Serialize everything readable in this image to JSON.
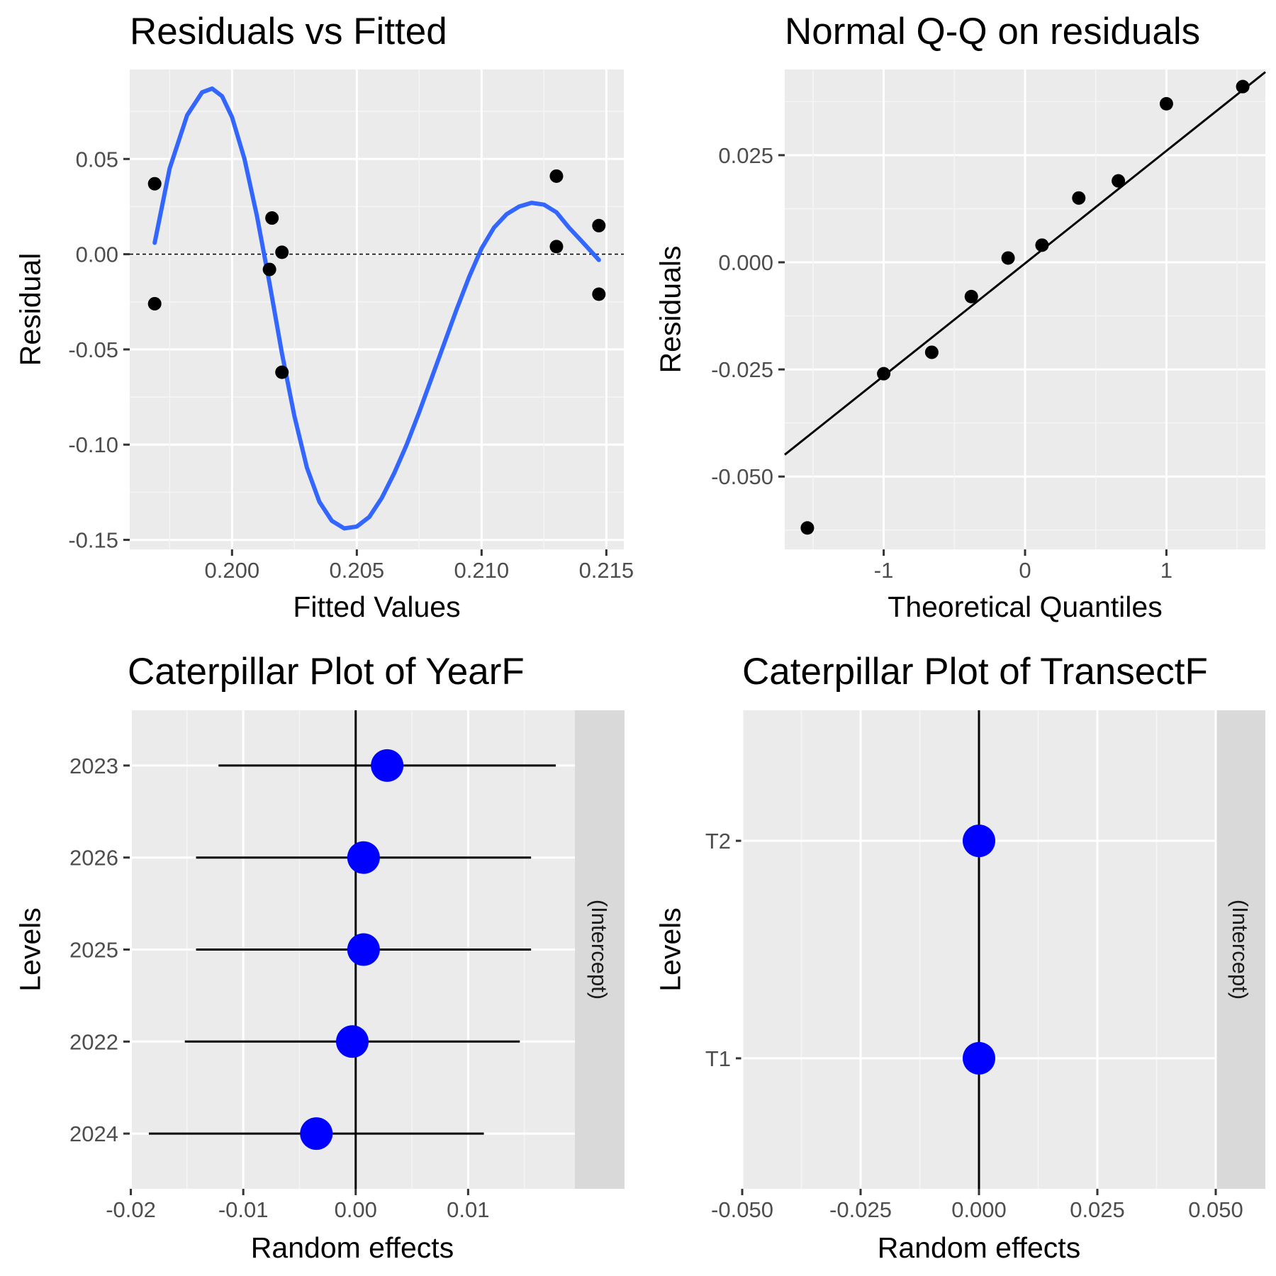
{
  "colors": {
    "panel_bg": "#ebebeb",
    "grid_major": "#ffffff",
    "grid_minor": "#f5f5f5",
    "smooth_line": "#3366ff",
    "point": "#000000",
    "re_point": "#0000ff",
    "strip_bg": "#d9d9d9"
  },
  "chart_data": [
    {
      "id": "resid-fitted",
      "type": "scatter",
      "title": "Residuals vs Fitted",
      "xlabel": "Fitted Values",
      "ylabel": "Residual",
      "xlim": [
        0.1959,
        0.2157
      ],
      "ylim": [
        -0.155,
        0.097
      ],
      "xticks": [
        0.2,
        0.205,
        0.21,
        0.215
      ],
      "xtick_labels": [
        "0.200",
        "0.205",
        "0.210",
        "0.215"
      ],
      "yticks": [
        -0.15,
        -0.1,
        -0.05,
        0.0,
        0.05
      ],
      "ytick_labels": [
        "-0.15",
        "-0.10",
        "-0.05",
        "0.00",
        "0.05"
      ],
      "reference_line": {
        "y": 0,
        "style": "dashed"
      },
      "points": [
        {
          "x": 0.1969,
          "y": 0.037
        },
        {
          "x": 0.1969,
          "y": -0.026
        },
        {
          "x": 0.2016,
          "y": 0.019
        },
        {
          "x": 0.2015,
          "y": -0.008
        },
        {
          "x": 0.202,
          "y": 0.001
        },
        {
          "x": 0.202,
          "y": -0.062
        },
        {
          "x": 0.213,
          "y": 0.041
        },
        {
          "x": 0.213,
          "y": 0.004
        },
        {
          "x": 0.2147,
          "y": 0.015
        },
        {
          "x": 0.2147,
          "y": -0.021
        }
      ],
      "smooth": {
        "x": [
          0.1969,
          0.1975,
          0.1982,
          0.1988,
          0.1992,
          0.1996,
          0.2,
          0.2005,
          0.201,
          0.2015,
          0.202,
          0.2025,
          0.203,
          0.2035,
          0.204,
          0.2045,
          0.205,
          0.2055,
          0.206,
          0.2065,
          0.207,
          0.2075,
          0.208,
          0.2085,
          0.209,
          0.2095,
          0.21,
          0.2105,
          0.211,
          0.2115,
          0.212,
          0.2125,
          0.213,
          0.2135,
          0.214,
          0.2147
        ],
        "y": [
          0.006,
          0.045,
          0.073,
          0.085,
          0.087,
          0.083,
          0.072,
          0.05,
          0.02,
          -0.015,
          -0.052,
          -0.085,
          -0.112,
          -0.13,
          -0.14,
          -0.144,
          -0.143,
          -0.138,
          -0.128,
          -0.115,
          -0.1,
          -0.083,
          -0.065,
          -0.047,
          -0.029,
          -0.012,
          0.003,
          0.014,
          0.021,
          0.025,
          0.027,
          0.026,
          0.022,
          0.014,
          0.007,
          -0.003
        ]
      }
    },
    {
      "id": "qq",
      "type": "scatter",
      "title": "Normal Q-Q on residuals",
      "xlabel": "Theoretical Quantiles",
      "ylabel": "Residuals",
      "xlim": [
        -1.7,
        1.7
      ],
      "ylim": [
        -0.067,
        0.045
      ],
      "xticks": [
        -1,
        0,
        1
      ],
      "xtick_labels": [
        "-1",
        "0",
        "1"
      ],
      "yticks": [
        -0.05,
        -0.025,
        0.0,
        0.025
      ],
      "ytick_labels": [
        "-0.050",
        "-0.025",
        "0.000",
        "0.025"
      ],
      "points": [
        {
          "x": -1.54,
          "y": -0.062
        },
        {
          "x": -1.0,
          "y": -0.026
        },
        {
          "x": -0.66,
          "y": -0.021
        },
        {
          "x": -0.38,
          "y": -0.008
        },
        {
          "x": -0.12,
          "y": 0.001
        },
        {
          "x": 0.12,
          "y": 0.004
        },
        {
          "x": 0.38,
          "y": 0.015
        },
        {
          "x": 0.66,
          "y": 0.019
        },
        {
          "x": 1.0,
          "y": 0.037
        },
        {
          "x": 1.54,
          "y": 0.041
        }
      ],
      "qq_line": {
        "x": [
          -1.7,
          1.7
        ],
        "y": [
          -0.0449,
          0.0444
        ]
      }
    },
    {
      "id": "cat-year",
      "type": "scatter",
      "title": "Caterpillar Plot of  YearF",
      "xlabel": "Random effects",
      "ylabel": "Levels",
      "strip_label": "(Intercept)",
      "xlim": [
        -0.0201,
        0.0195
      ],
      "xticks": [
        -0.02,
        -0.01,
        0.0,
        0.01
      ],
      "xtick_labels": [
        "-0.02",
        "-0.01",
        "0.00",
        "0.01"
      ],
      "categories": [
        "2023",
        "2026",
        "2025",
        "2022",
        "2024"
      ],
      "estimates": [
        0.0028,
        0.0007,
        0.0007,
        -0.0003,
        -0.0035
      ],
      "lower": [
        -0.0122,
        -0.0142,
        -0.0142,
        -0.0152,
        -0.0184
      ],
      "upper": [
        0.0178,
        0.0156,
        0.0156,
        0.0146,
        0.0114
      ],
      "zero_line": 0
    },
    {
      "id": "cat-transect",
      "type": "scatter",
      "title": "Caterpillar Plot of  TransectF",
      "xlabel": "Random effects",
      "ylabel": "Levels",
      "strip_label": "(Intercept)",
      "xlim": [
        -0.05,
        0.05
      ],
      "xticks": [
        -0.05,
        -0.025,
        0.0,
        0.025,
        0.05
      ],
      "xtick_labels": [
        "-0.050",
        "-0.025",
        "0.000",
        "0.025",
        "0.050"
      ],
      "categories": [
        "T2",
        "T1"
      ],
      "estimates": [
        0.0,
        0.0
      ],
      "lower": [
        0.0,
        0.0
      ],
      "upper": [
        0.0,
        0.0
      ],
      "zero_line": 0
    }
  ]
}
